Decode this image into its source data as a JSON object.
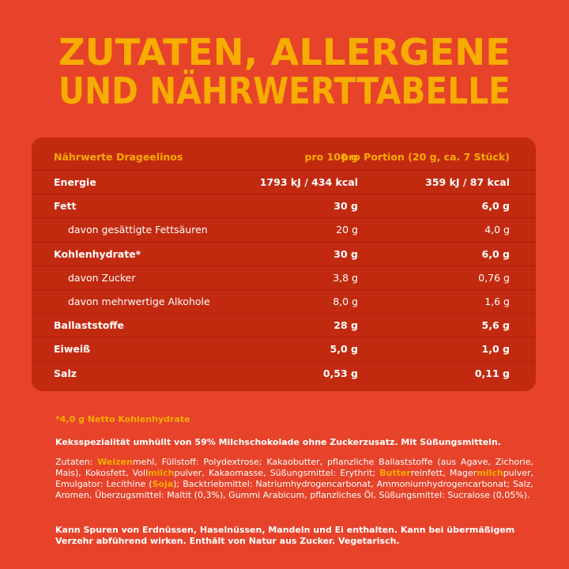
{
  "header": {
    "title_lines": [
      "ZUTATEN, ALLERGENE",
      "UND NÄHRWERTTABELLE"
    ]
  },
  "table": {
    "columns": [
      "Nährwerte Drageelinos",
      "pro 100 g",
      "pro Portion (20 g, ca. 7 Stück)"
    ],
    "rows": [
      {
        "style": "main",
        "cells": [
          "Energie",
          "1793 kJ / 434 kcal",
          "359 kJ / 87 kcal"
        ]
      },
      {
        "style": "main",
        "cells": [
          "Fett",
          "30 g",
          "6,0 g"
        ]
      },
      {
        "style": "sub",
        "cells": [
          "davon gesättigte Fettsäuren",
          "20 g",
          "4,0 g"
        ]
      },
      {
        "style": "main",
        "cells": [
          "Kohlenhydrate*",
          "30 g",
          "6,0 g"
        ]
      },
      {
        "style": "sub",
        "cells": [
          "davon Zucker",
          "3,8 g",
          "0,76 g"
        ]
      },
      {
        "style": "sub",
        "cells": [
          "davon mehrwertige Alkohole",
          "8,0 g",
          "1,6 g"
        ]
      },
      {
        "style": "main",
        "cells": [
          "Ballaststoffe",
          "28 g",
          "5,6 g"
        ]
      },
      {
        "style": "main",
        "cells": [
          "Eiweiß",
          "5,0 g",
          "1,0 g"
        ]
      },
      {
        "style": "main",
        "cells": [
          "Salz",
          "0,53 g",
          "0,11 g"
        ]
      }
    ]
  },
  "footnote": "*4,0 g Netto Kohlenhydrate",
  "description": "Keksspezialität umhüllt von 59% Milchschokolade ohne Zuckerzusatz. Mit Süßungsmitteln.",
  "ingredients": [
    "Zutaten: ",
    "Weizen",
    "mehl, Füllstoff: Polydextrose; Kakaobutter, pflanzliche Ballaststoffe (aus Agave, Zichorie, Mais), Kokosfett, Voll",
    "milch",
    "pulver, Kakaomasse, Süßungsmittel: Erythrit; ",
    "Butter",
    "reinfett, Mager",
    "milch",
    "pulver, Emulgator: Lecithine (",
    "Soja",
    "); Backtriebmittel: Natriumhydrogencarbonat, Ammoniumhydrogencarbonat; Salz, Aromen, Überzugsmittel: Maltit (0,3%), Gummi Arabicum, pflanzliches Öl, Süßungsmittel: Sucralose (0,05%)."
  ],
  "notice": "Kann Spuren von Erdnüssen, Haselnüssen, Mandeln und Ei enthalten. Kann bei übermäßigem Verzehr abführend wirken. Enthält von Natur aus Zucker. Vegetarisch."
}
